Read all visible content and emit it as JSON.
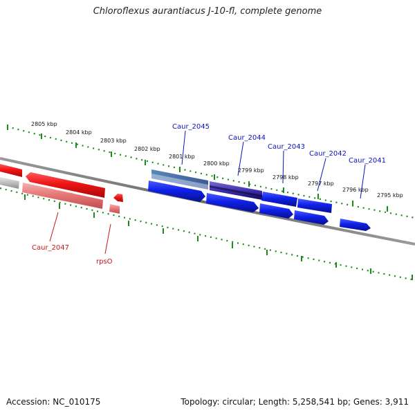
{
  "header": {
    "title": "Chloroflexus aurantiacus J-10-fl, complete genome"
  },
  "footer": {
    "accession": "Accession: NC_010175",
    "summary": "Topology: circular; Length: 5,258,541 bp; Genes: 3,911"
  },
  "scale": {
    "labels": [
      "2805 kbp",
      "2804 kbp",
      "2803 kbp",
      "2802 kbp",
      "2801 kbp",
      "2800 kbp",
      "2799 kbp",
      "2798 kbp",
      "2797 kbp",
      "2796 kbp",
      "2795 kbp"
    ]
  },
  "genes": {
    "caur_2045": "Caur_2045",
    "caur_2044": "Caur_2044",
    "caur_2043": "Caur_2043",
    "caur_2042": "Caur_2042",
    "caur_2041": "Caur_2041",
    "caur_2047": "Caur_2047",
    "rpso": "rpsO"
  },
  "colors": {
    "blue_gene": "#0a12e0",
    "red_gene": "#e01010",
    "tick_green": "#1a8a1a",
    "backbone": "#777777"
  }
}
